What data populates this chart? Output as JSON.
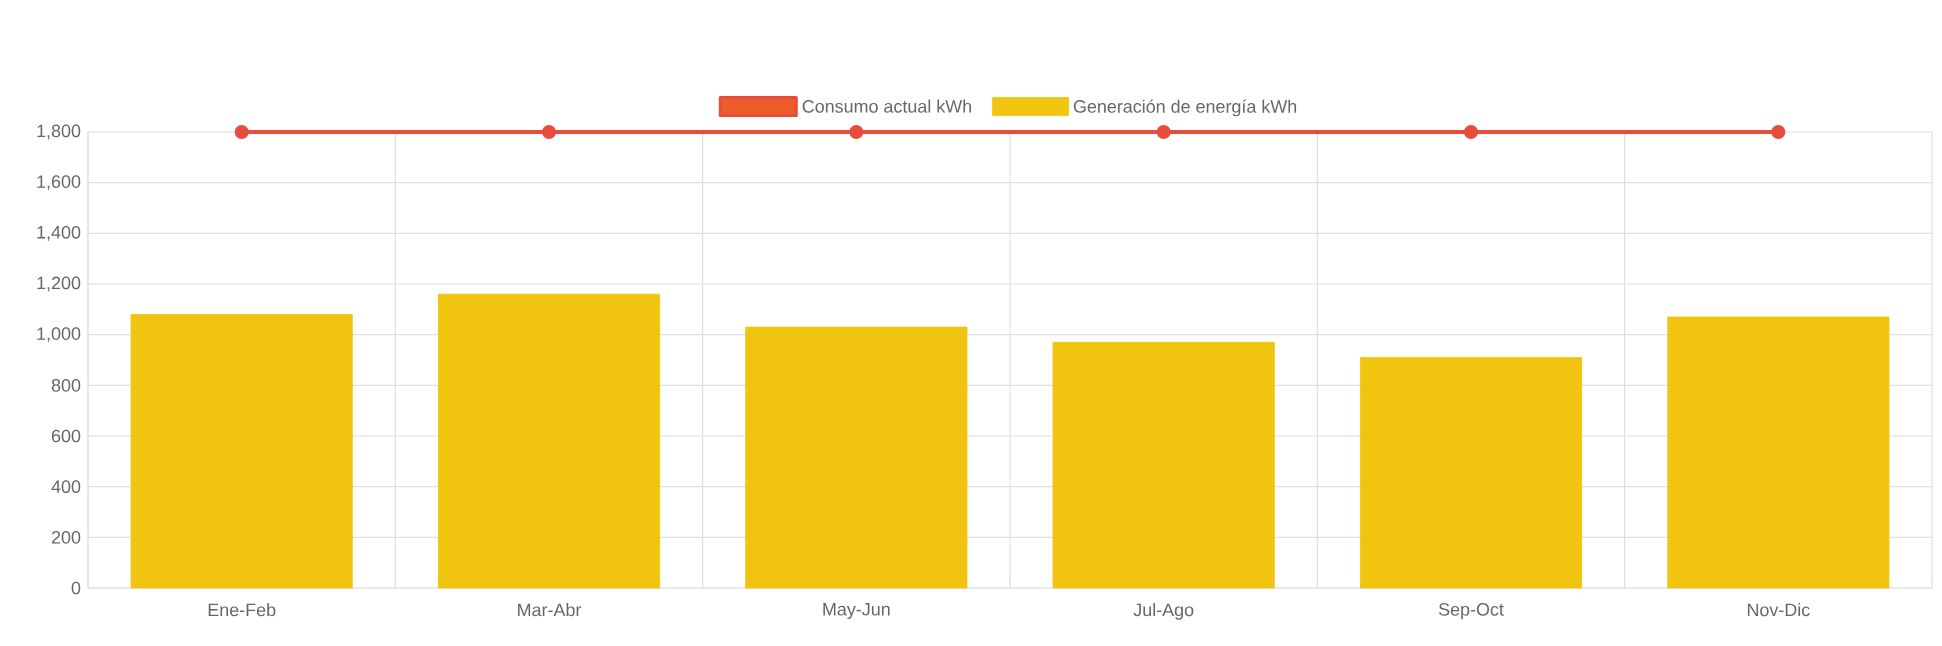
{
  "chart_data": {
    "type": "bar",
    "categories": [
      "Ene-Feb",
      "Mar-Abr",
      "May-Jun",
      "Jul-Ago",
      "Sep-Oct",
      "Nov-Dic"
    ],
    "series": [
      {
        "name": "Consumo actual kWh",
        "type": "line",
        "color": "#e74c3c",
        "marker": "circle",
        "values": [
          1800,
          1800,
          1800,
          1800,
          1800,
          1800
        ]
      },
      {
        "name": "Generación de energía kWh",
        "color": "#f1c40f",
        "values": [
          1080,
          1160,
          1030,
          970,
          910,
          1070
        ]
      }
    ],
    "ylim": [
      0,
      1800
    ],
    "yticks": [
      0,
      200,
      400,
      600,
      800,
      {
        "value": 1000,
        "label": "1,000"
      },
      {
        "value": 1200,
        "label": "1,200"
      },
      {
        "value": 1400,
        "label": "1,400"
      },
      {
        "value": 1600,
        "label": "1,600"
      },
      {
        "value": 1800,
        "label": "1,800"
      }
    ],
    "grid": true,
    "legend": "top"
  }
}
